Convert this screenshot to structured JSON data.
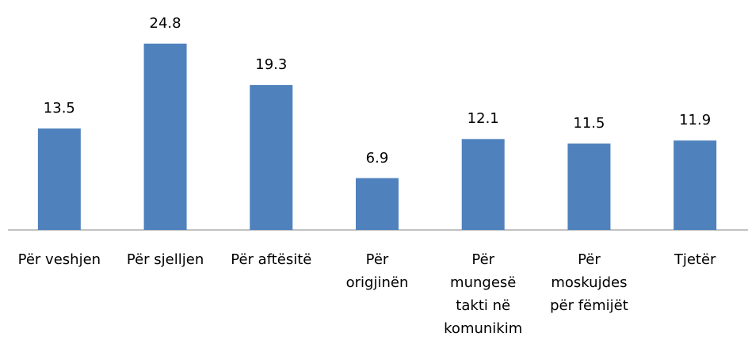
{
  "chart_data": {
    "type": "bar",
    "categories": [
      "Për veshjen",
      "Për sjelljen",
      "Për aftësitë",
      "Për\norigjinën",
      "Për\nmungesë\ntakti në\nkomunikim",
      "Për\nmoskujdes\npër fëmijët",
      "Tjetër"
    ],
    "values": [
      13.5,
      24.8,
      19.3,
      6.9,
      12.1,
      11.5,
      11.9
    ],
    "color": "#4f81bd"
  }
}
